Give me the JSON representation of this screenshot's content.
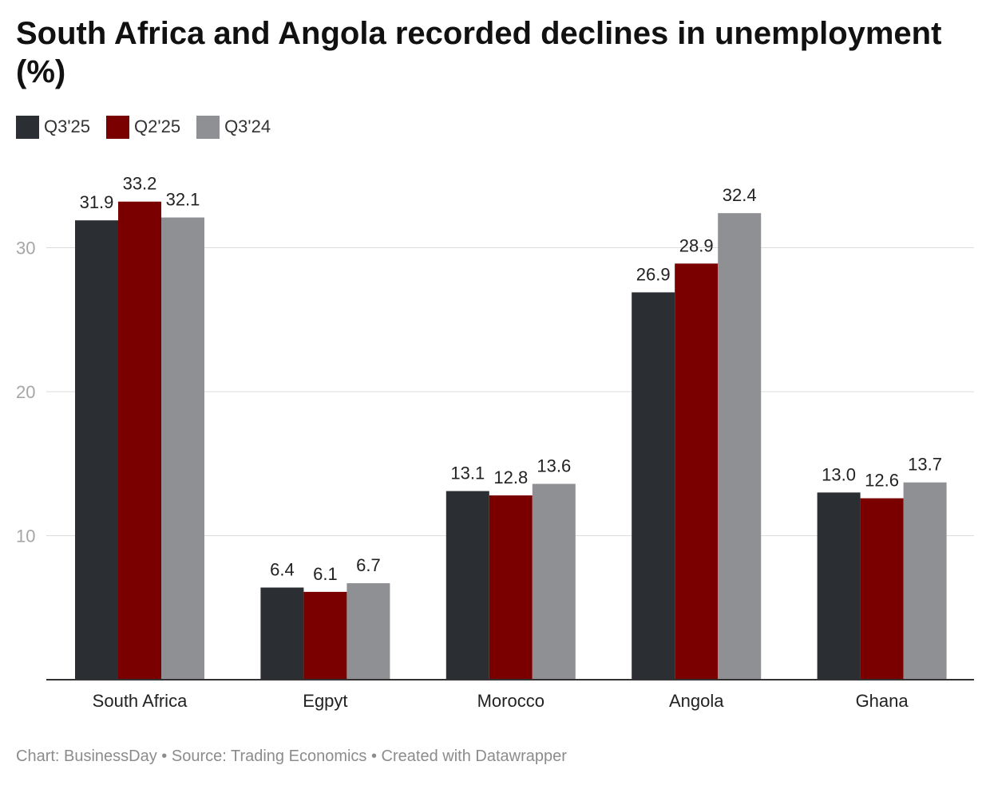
{
  "title": "South Africa and Angola recorded declines in unemployment (%)",
  "legend": [
    {
      "label": "Q3'25",
      "color": "#2b2e33"
    },
    {
      "label": "Q2'25",
      "color": "#7a0000"
    },
    {
      "label": "Q3'24",
      "color": "#8e9094"
    }
  ],
  "footer": {
    "chart": "Chart: BusinessDay",
    "source": " • Source: Trading Economics",
    "created": " • Created with Datawrapper"
  },
  "chart_data": {
    "type": "bar",
    "title": "South Africa and Angola recorded declines in unemployment (%)",
    "categories": [
      "South Africa",
      "Egpyt",
      "Morocco",
      "Angola",
      "Ghana"
    ],
    "series": [
      {
        "name": "Q3'25",
        "color": "#2b2e33",
        "values": [
          31.9,
          6.4,
          13.1,
          26.9,
          13.0
        ],
        "labels": [
          "31.9",
          "6.4",
          "13.1",
          "26.9",
          "13.0"
        ]
      },
      {
        "name": "Q2'25",
        "color": "#7a0000",
        "values": [
          33.2,
          6.1,
          12.8,
          28.9,
          12.6
        ],
        "labels": [
          "33.2",
          "6.1",
          "12.8",
          "28.9",
          "12.6"
        ]
      },
      {
        "name": "Q3'24",
        "color": "#8e9094",
        "values": [
          32.1,
          6.7,
          13.6,
          32.4,
          13.7
        ],
        "labels": [
          "32.1",
          "6.7",
          "13.6",
          "32.4",
          "13.7"
        ]
      }
    ],
    "yticks": [
      10,
      20,
      30
    ],
    "ylim": [
      0,
      35
    ],
    "grid": true,
    "xlabel": "",
    "ylabel": "",
    "legend_position": "top-left"
  }
}
